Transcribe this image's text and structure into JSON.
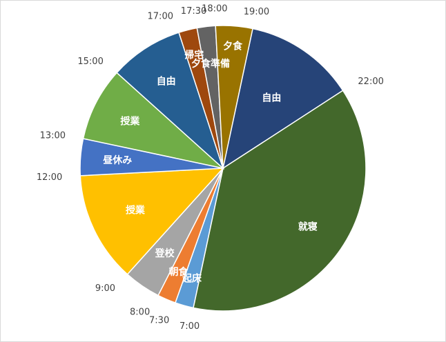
{
  "chart_data": {
    "type": "pie",
    "title": "",
    "start_angle_deg": 12,
    "slices": [
      {
        "label": "自由",
        "start": "19:00",
        "hours": 3.0,
        "color": "#264478"
      },
      {
        "label": "就寝",
        "start": "22:00",
        "hours": 9.0,
        "color": "#43682B"
      },
      {
        "label": "起床",
        "start": "7:00",
        "hours": 0.5,
        "color": "#5B9BD5"
      },
      {
        "label": "朝食",
        "start": "7:30",
        "hours": 0.5,
        "color": "#ED7D31"
      },
      {
        "label": "登校",
        "start": "8:00",
        "hours": 1.0,
        "color": "#A5A5A5"
      },
      {
        "label": "授業",
        "start": "9:00",
        "hours": 3.0,
        "color": "#FFC000"
      },
      {
        "label": "昼休み",
        "start": "12:00",
        "hours": 1.0,
        "color": "#4472C4"
      },
      {
        "label": "授業",
        "start": "13:00",
        "hours": 2.0,
        "color": "#70AD47"
      },
      {
        "label": "自由",
        "start": "15:00",
        "hours": 2.0,
        "color": "#255E91"
      },
      {
        "label": "帰宅",
        "start": "17:00",
        "hours": 0.5,
        "color": "#9E480E"
      },
      {
        "label": "夕食準備",
        "start": "17:30",
        "hours": 0.5,
        "color": "#636363"
      },
      {
        "label": "夕食",
        "start": "18:00",
        "hours": 1.0,
        "color": "#997300"
      }
    ],
    "legend": "none"
  }
}
